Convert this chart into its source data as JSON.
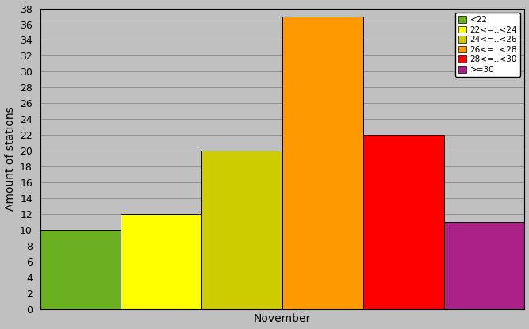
{
  "categories": [
    "<22",
    "22<=..<24",
    "24<=..<26",
    "26<=..<28",
    "28<=..<30",
    ">=30"
  ],
  "values": [
    10,
    12,
    20,
    37,
    22,
    11
  ],
  "colors": [
    "#6ab020",
    "#ffff00",
    "#cccc00",
    "#ff9900",
    "#ff0000",
    "#aa2288"
  ],
  "xlabel": "November",
  "ylabel": "Amount of stations",
  "ylim": [
    0,
    38
  ],
  "yticks": [
    0,
    2,
    4,
    6,
    8,
    10,
    12,
    14,
    16,
    18,
    20,
    22,
    24,
    26,
    28,
    30,
    32,
    34,
    36,
    38
  ],
  "background_color": "#c0c0c0",
  "grid_color": "#aaaaaa",
  "bar_width": 1.0,
  "figsize": [
    6.67,
    4.15
  ],
  "dpi": 100
}
